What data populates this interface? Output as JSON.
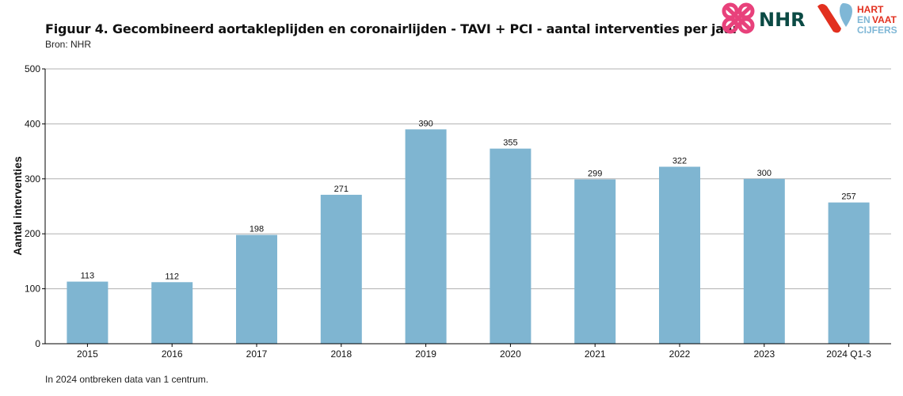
{
  "header": {
    "title": "Figuur 4. Gecombineerd aortakleplijden en coronairlijden - TAVI + PCI - aantal interventies per jaar",
    "subtitle": "Bron: NHR"
  },
  "logos": {
    "nhr": "NHR",
    "hvc": [
      "HART",
      "ENVAAT",
      "CIJFERS"
    ],
    "colors": {
      "nhr_mark": "#e8417b",
      "nhr_text": "#0b4a44",
      "hvc_red": "#e2301f",
      "hvc_blue": "#7fb7d6"
    }
  },
  "footnote": "In 2024 ontbreken data van 1 centrum.",
  "chart_data": {
    "type": "bar",
    "title": "Figuur 4. Gecombineerd aortakleplijden en coronairlijden - TAVI + PCI - aantal interventies per jaar",
    "xlabel": "",
    "ylabel": "Aantal interventies",
    "categories": [
      "2015",
      "2016",
      "2017",
      "2018",
      "2019",
      "2020",
      "2021",
      "2022",
      "2023",
      "2024 Q1-3"
    ],
    "values": [
      113,
      112,
      198,
      271,
      390,
      355,
      299,
      322,
      300,
      257
    ],
    "ylim": [
      0,
      500
    ],
    "yticks": [
      0,
      100,
      200,
      300,
      400,
      500
    ],
    "grid": true,
    "bar_color": "#7fb5d1",
    "data_labels": true
  }
}
